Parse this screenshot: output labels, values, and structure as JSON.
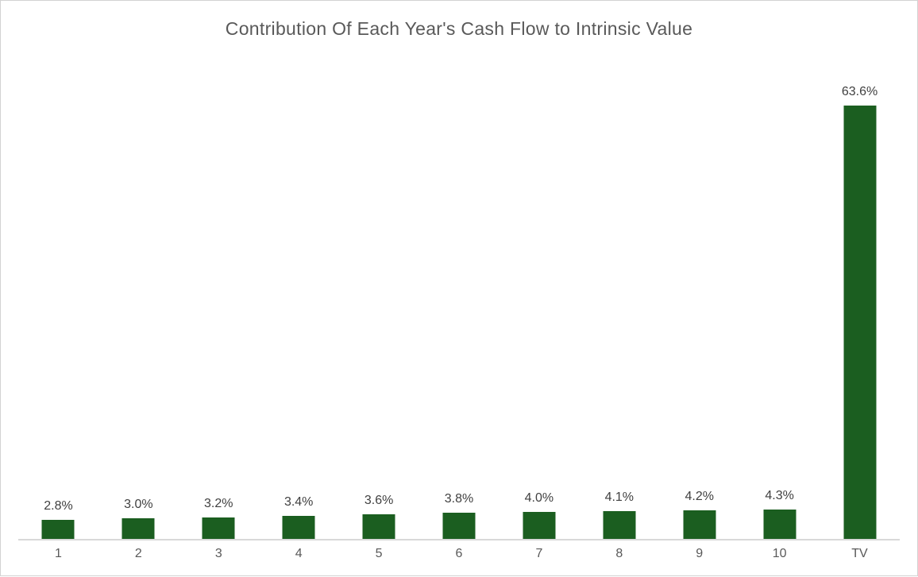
{
  "chart_data": {
    "type": "bar",
    "title": "Contribution Of Each Year's Cash Flow to Intrinsic Value",
    "categories": [
      "1",
      "2",
      "3",
      "4",
      "5",
      "6",
      "7",
      "8",
      "9",
      "10",
      "TV"
    ],
    "values": [
      2.8,
      3.0,
      3.2,
      3.4,
      3.6,
      3.8,
      4.0,
      4.1,
      4.2,
      4.3,
      63.6
    ],
    "data_labels": [
      "2.8%",
      "3.0%",
      "3.2%",
      "3.4%",
      "3.6%",
      "3.8%",
      "4.0%",
      "4.1%",
      "4.2%",
      "4.3%",
      "63.6%"
    ],
    "unit": "%",
    "xlabel": "",
    "ylabel": "",
    "grid": false,
    "legend": false,
    "y_axis_visible": false,
    "colors": {
      "bar": "#1b5e20",
      "title": "#595959",
      "value_label": "#404040",
      "category_label": "#595959",
      "axis_line": "#d9d9d9",
      "background": "#ffffff",
      "border": "#d2d2d2"
    }
  }
}
